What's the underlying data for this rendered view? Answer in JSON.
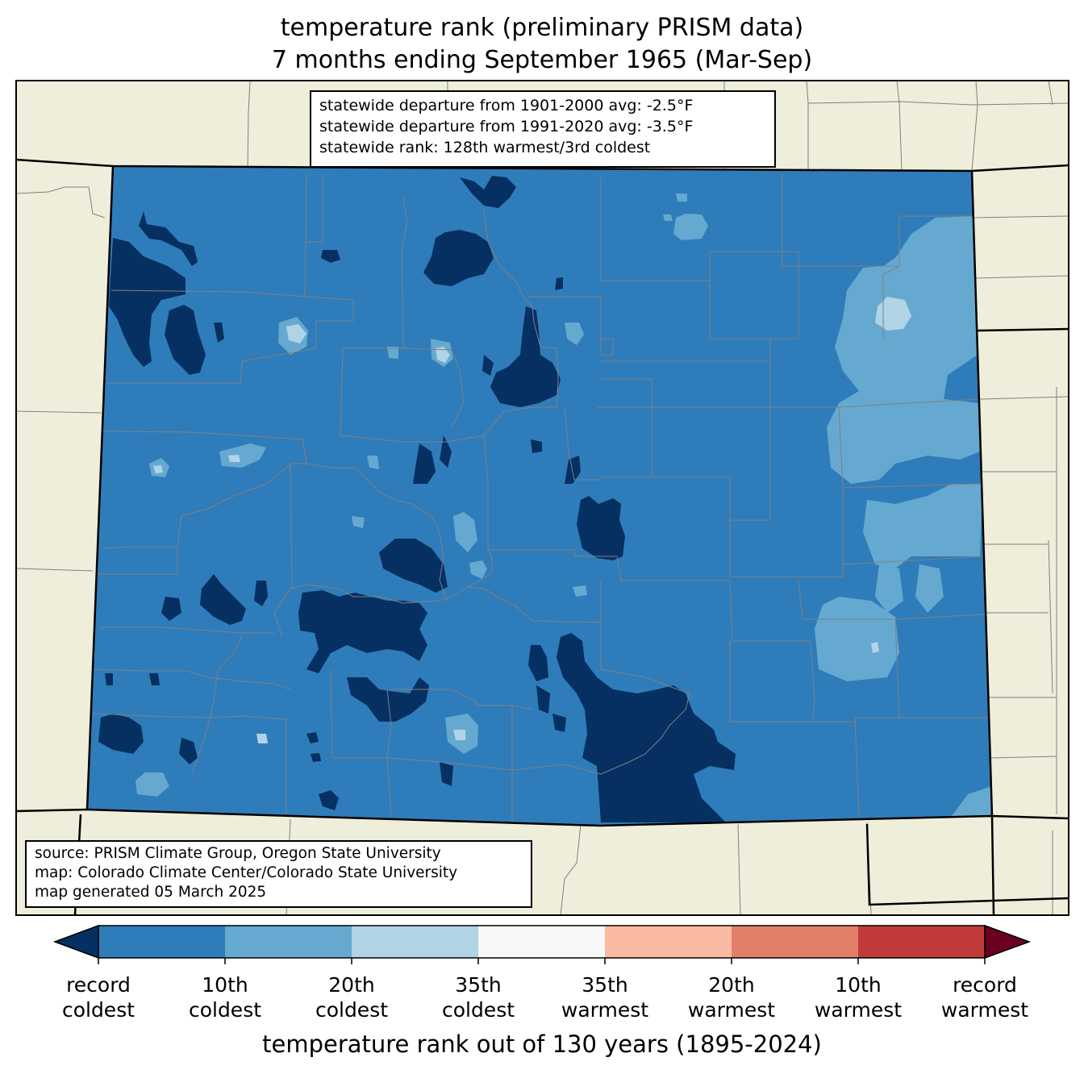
{
  "title_line1": "temperature rank (preliminary PRISM data)",
  "title_line2": "7 months ending September 1965 (Mar-Sep)",
  "stats": [
    "statewide departure from 1901-2000 avg: -2.5°F",
    "statewide departure from 1991-2020 avg: -3.5°F",
    "statewide rank: 128th warmest/3rd coldest"
  ],
  "source": [
    "source: PRISM Climate Group, Oregon State University",
    "map: Colorado Climate Center/Colorado State University",
    "map generated 05 March 2025"
  ],
  "colors": {
    "background_land": "#efeedb",
    "record_coldest": "#053061",
    "coldest_10th": "#2f7cba",
    "coldest_20th": "#66a9d0",
    "coldest_35th": "#b0d4e6",
    "normal": "#f7f7f7",
    "warmest_35th": "#f8bba2",
    "warmest_20th": "#e17f68",
    "warmest_10th": "#c13a3a",
    "record_warmest": "#6c0020",
    "county_lines": "#808080"
  },
  "colorbar": {
    "labels": [
      [
        "record",
        "coldest"
      ],
      [
        "10th",
        "coldest"
      ],
      [
        "20th",
        "coldest"
      ],
      [
        "35th",
        "coldest"
      ],
      [
        "35th",
        "warmest"
      ],
      [
        "20th",
        "warmest"
      ],
      [
        "10th",
        "warmest"
      ],
      [
        "record",
        "warmest"
      ]
    ],
    "axis_label": "temperature rank out of 130 years (1895-2024)"
  }
}
